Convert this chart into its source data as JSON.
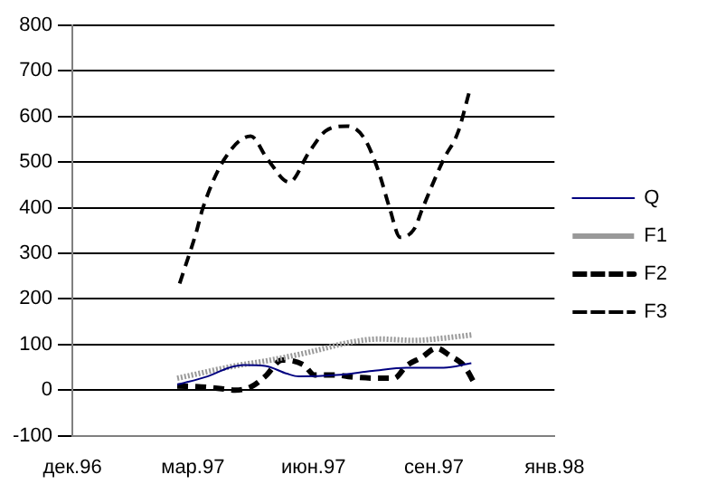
{
  "chart_data": {
    "type": "line",
    "xlim": [
      "1996-12-01",
      "1998-01-05"
    ],
    "xticks": [
      {
        "value": "1996-12-01",
        "label": "дек.96"
      },
      {
        "value": "1997-03-11",
        "label": "мар.97"
      },
      {
        "value": "1997-06-19",
        "label": "июн.97"
      },
      {
        "value": "1997-09-27",
        "label": "сен.97"
      },
      {
        "value": "1998-01-05",
        "label": "янв.98"
      }
    ],
    "ylim": [
      -100,
      800
    ],
    "yticks": [
      -100,
      0,
      100,
      200,
      300,
      400,
      500,
      600,
      700,
      800
    ],
    "grid": "y",
    "legend": "right",
    "marker": "none",
    "series": [
      {
        "name": "Q",
        "color": "#000080",
        "line_style": "solid",
        "x": [
          "1997-02-26",
          "1997-03-23",
          "1997-04-10",
          "1997-04-22",
          "1997-05-10",
          "1997-05-28",
          "1997-06-07",
          "1997-07-08",
          "1997-08-07",
          "1997-09-04",
          "1997-10-05",
          "1997-10-28"
        ],
        "values": [
          12,
          30,
          49,
          55,
          53,
          36,
          30,
          33,
          42,
          49,
          49,
          59
        ]
      },
      {
        "name": "F1",
        "color": "#999999",
        "line_style": "dotted",
        "x": [
          "1997-02-26",
          "1997-04-15",
          "1997-05-15",
          "1997-06-15",
          "1997-07-20",
          "1997-08-12",
          "1997-09-11",
          "1997-10-05",
          "1997-10-28"
        ],
        "values": [
          26,
          53,
          66,
          83,
          105,
          112,
          109,
          114,
          121
        ]
      },
      {
        "name": "F2",
        "color": "#000000",
        "line_style": "dashed",
        "x": [
          "1997-02-26",
          "1997-03-18",
          "1997-04-04",
          "1997-04-15",
          "1997-04-28",
          "1997-05-10",
          "1997-05-24",
          "1997-06-11",
          "1997-06-20",
          "1997-07-08",
          "1997-07-20",
          "1997-08-12",
          "1997-08-25",
          "1997-09-04",
          "1997-09-17",
          "1997-09-29",
          "1997-10-10",
          "1997-10-22",
          "1997-10-31"
        ],
        "values": [
          9,
          7,
          3,
          0,
          7,
          30,
          66,
          55,
          33,
          33,
          29,
          26,
          26,
          53,
          72,
          92,
          76,
          53,
          13
        ]
      },
      {
        "name": "F3",
        "color": "#000000",
        "line_style": "dashed",
        "x": [
          "1997-02-28",
          "1997-03-14",
          "1997-03-19",
          "1997-04-06",
          "1997-04-28",
          "1997-05-12",
          "1997-05-30",
          "1997-06-15",
          "1997-06-29",
          "1997-07-17",
          "1997-07-31",
          "1997-08-12",
          "1997-08-21",
          "1997-08-30",
          "1997-09-11",
          "1997-09-17",
          "1997-10-05",
          "1997-10-17",
          "1997-10-26"
        ],
        "values": [
          234,
          348,
          397,
          506,
          557,
          506,
          456,
          520,
          568,
          579,
          553,
          480,
          401,
          335,
          355,
          395,
          506,
          566,
          651
        ]
      }
    ]
  }
}
